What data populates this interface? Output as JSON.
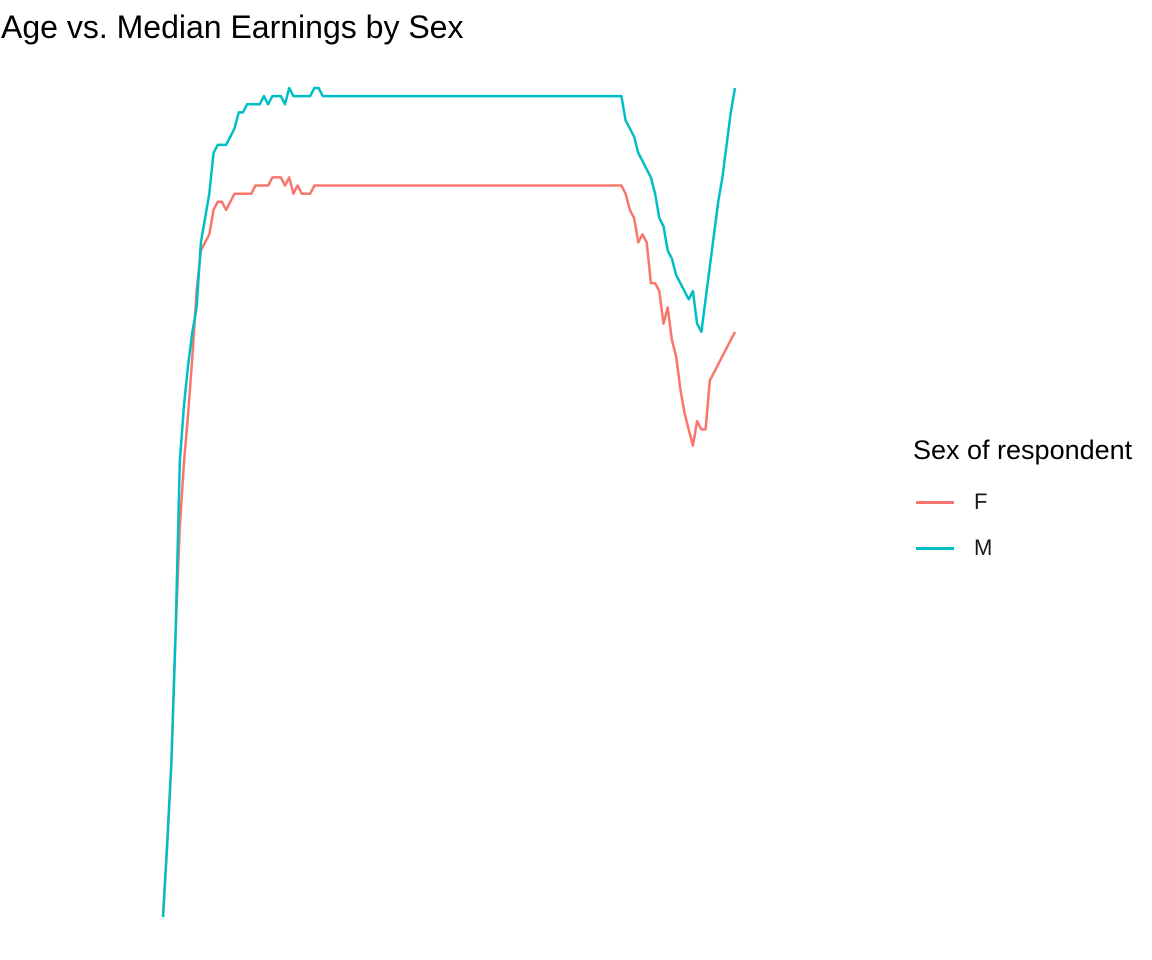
{
  "chart_data": {
    "type": "line",
    "title": "Age vs. Median Earnings by Sex",
    "xlabel": "",
    "ylabel": "",
    "grid": false,
    "legend": {
      "title": "Sex of respondent",
      "position": "right"
    },
    "x": [
      16,
      17,
      18,
      19,
      20,
      21,
      22,
      23,
      24,
      25,
      26,
      27,
      28,
      29,
      30,
      31,
      32,
      33,
      34,
      35,
      36,
      37,
      38,
      39,
      40,
      41,
      42,
      43,
      44,
      45,
      46,
      47,
      48,
      49,
      50,
      51,
      52,
      53,
      54,
      55,
      56,
      57,
      58,
      59,
      60,
      61,
      62,
      63,
      64,
      65,
      66,
      67,
      68,
      69,
      70,
      71,
      72,
      73,
      74,
      75,
      76,
      77,
      78,
      79,
      80,
      81,
      82,
      83,
      84,
      85,
      86,
      87,
      88,
      89,
      90,
      91,
      92,
      93,
      94,
      95,
      96,
      97,
      98,
      99,
      100,
      101,
      102,
      103,
      104,
      105,
      106,
      107,
      108,
      109,
      110,
      111,
      112,
      113,
      114,
      115,
      116,
      117,
      118,
      119,
      120,
      121,
      122,
      123,
      124,
      125,
      126,
      127,
      128,
      129,
      130,
      131,
      132,
      133,
      134,
      135,
      136,
      137,
      138,
      139,
      140,
      141,
      142,
      143,
      144,
      145,
      146,
      147,
      148,
      149,
      150,
      151,
      152
    ],
    "series": [
      {
        "name": "F",
        "color": "#F8766D",
        "values": [
          0.0,
          0.09,
          0.19,
          0.35,
          0.48,
          0.56,
          0.62,
          0.69,
          0.77,
          0.82,
          0.83,
          0.84,
          0.87,
          0.88,
          0.88,
          0.87,
          0.88,
          0.89,
          0.89,
          0.89,
          0.89,
          0.89,
          0.9,
          0.9,
          0.9,
          0.9,
          0.91,
          0.91,
          0.91,
          0.9,
          0.91,
          0.89,
          0.9,
          0.89,
          0.89,
          0.89,
          0.9,
          0.9,
          0.9,
          0.9,
          0.9,
          0.9,
          0.9,
          0.9,
          0.9,
          0.9,
          0.9,
          0.9,
          0.9,
          0.9,
          0.9,
          0.9,
          0.9,
          0.9,
          0.9,
          0.9,
          0.9,
          0.9,
          0.9,
          0.9,
          0.9,
          0.9,
          0.9,
          0.9,
          0.9,
          0.9,
          0.9,
          0.9,
          0.9,
          0.9,
          0.9,
          0.9,
          0.9,
          0.9,
          0.9,
          0.9,
          0.9,
          0.9,
          0.9,
          0.9,
          0.9,
          0.9,
          0.9,
          0.9,
          0.9,
          0.9,
          0.9,
          0.9,
          0.9,
          0.9,
          0.9,
          0.9,
          0.9,
          0.9,
          0.9,
          0.9,
          0.9,
          0.9,
          0.9,
          0.9,
          0.9,
          0.9,
          0.9,
          0.9,
          0.9,
          0.9,
          0.9,
          0.9,
          0.9,
          0.9,
          0.89,
          0.87,
          0.86,
          0.83,
          0.84,
          0.83,
          0.78,
          0.78,
          0.77,
          0.73,
          0.75,
          0.71,
          0.69,
          0.65,
          0.62,
          0.6,
          0.58,
          0.61,
          0.6,
          0.6,
          0.66,
          0.67,
          0.68,
          0.69,
          0.7,
          0.71,
          0.72
        ]
      },
      {
        "name": "M",
        "color": "#00BFC4",
        "values": [
          0.0,
          0.09,
          0.19,
          0.35,
          0.56,
          0.63,
          0.68,
          0.72,
          0.75,
          0.83,
          0.86,
          0.89,
          0.94,
          0.95,
          0.95,
          0.95,
          0.96,
          0.97,
          0.99,
          0.99,
          1.0,
          1.0,
          1.0,
          1.0,
          1.01,
          1.0,
          1.01,
          1.01,
          1.01,
          1.0,
          1.02,
          1.01,
          1.01,
          1.01,
          1.01,
          1.01,
          1.02,
          1.02,
          1.01,
          1.01,
          1.01,
          1.01,
          1.01,
          1.01,
          1.01,
          1.01,
          1.01,
          1.01,
          1.01,
          1.01,
          1.01,
          1.01,
          1.01,
          1.01,
          1.01,
          1.01,
          1.01,
          1.01,
          1.01,
          1.01,
          1.01,
          1.01,
          1.01,
          1.01,
          1.01,
          1.01,
          1.01,
          1.01,
          1.01,
          1.01,
          1.01,
          1.01,
          1.01,
          1.01,
          1.01,
          1.01,
          1.01,
          1.01,
          1.01,
          1.01,
          1.01,
          1.01,
          1.01,
          1.01,
          1.01,
          1.01,
          1.01,
          1.01,
          1.01,
          1.01,
          1.01,
          1.01,
          1.01,
          1.01,
          1.01,
          1.01,
          1.01,
          1.01,
          1.01,
          1.01,
          1.01,
          1.01,
          1.01,
          1.01,
          1.01,
          1.01,
          1.01,
          1.01,
          1.01,
          1.01,
          0.98,
          0.97,
          0.96,
          0.94,
          0.93,
          0.92,
          0.91,
          0.89,
          0.86,
          0.85,
          0.82,
          0.81,
          0.79,
          0.78,
          0.77,
          0.76,
          0.77,
          0.73,
          0.72,
          0.76,
          0.8,
          0.84,
          0.88,
          0.91,
          0.95,
          0.99,
          1.02
        ]
      }
    ]
  }
}
